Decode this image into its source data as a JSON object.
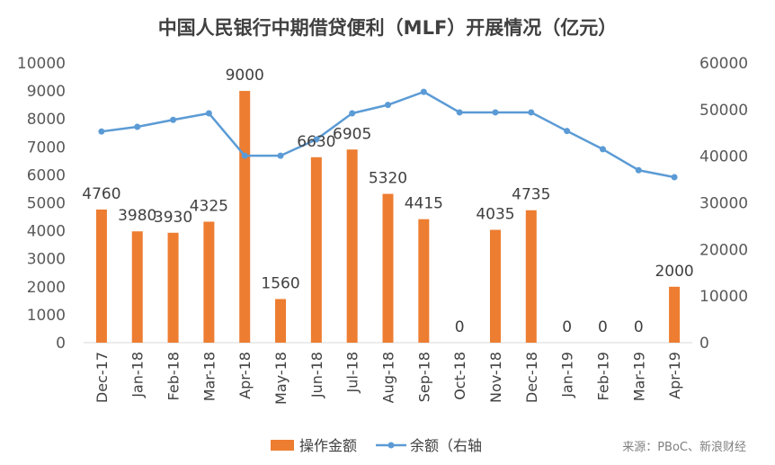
{
  "chart_data": {
    "type": "bar",
    "title": "中国人民银行中期借贷便利（MLF）开展情况（亿元）",
    "categories": [
      "Dec-17",
      "Jan-18",
      "Feb-18",
      "Mar-18",
      "Apr-18",
      "May-18",
      "Jun-18",
      "Jul-18",
      "Aug-18",
      "Sep-18",
      "Oct-18",
      "Nov-18",
      "Dec-18",
      "Jan-19",
      "Feb-19",
      "Mar-19",
      "Apr-19"
    ],
    "series": [
      {
        "name": "操作金额",
        "type": "bar",
        "axis": "left",
        "color": "#ED7D31",
        "values": [
          4760,
          3980,
          3930,
          4325,
          9000,
          1560,
          6630,
          6905,
          5320,
          4415,
          0,
          4035,
          4735,
          0,
          0,
          0,
          2000
        ]
      },
      {
        "name": "余额（右轴",
        "type": "line",
        "axis": "right",
        "color": "#5B9BD5",
        "values": [
          45300,
          46300,
          47800,
          49200,
          40100,
          40100,
          43600,
          49200,
          51000,
          53800,
          49400,
          49400,
          49400,
          45400,
          41500,
          37000,
          35500
        ]
      }
    ],
    "ylim_left": [
      0,
      10000
    ],
    "yticks_left": [
      "0",
      "1000",
      "2000",
      "3000",
      "4000",
      "5000",
      "6000",
      "7000",
      "8000",
      "9000",
      "10000"
    ],
    "ylim_right": [
      0,
      60000
    ],
    "yticks_right": [
      "0",
      "10000",
      "20000",
      "30000",
      "40000",
      "50000",
      "60000"
    ],
    "data_labels": [
      "4760",
      "3980",
      "3930",
      "4325",
      "9000",
      "1560",
      "6630",
      "6905",
      "5320",
      "4415",
      "0",
      "4035",
      "4735",
      "0",
      "0",
      "0",
      "2000"
    ],
    "legend_position": "bottom",
    "grid": false,
    "source": "来源：PBoC、新浪财经"
  }
}
